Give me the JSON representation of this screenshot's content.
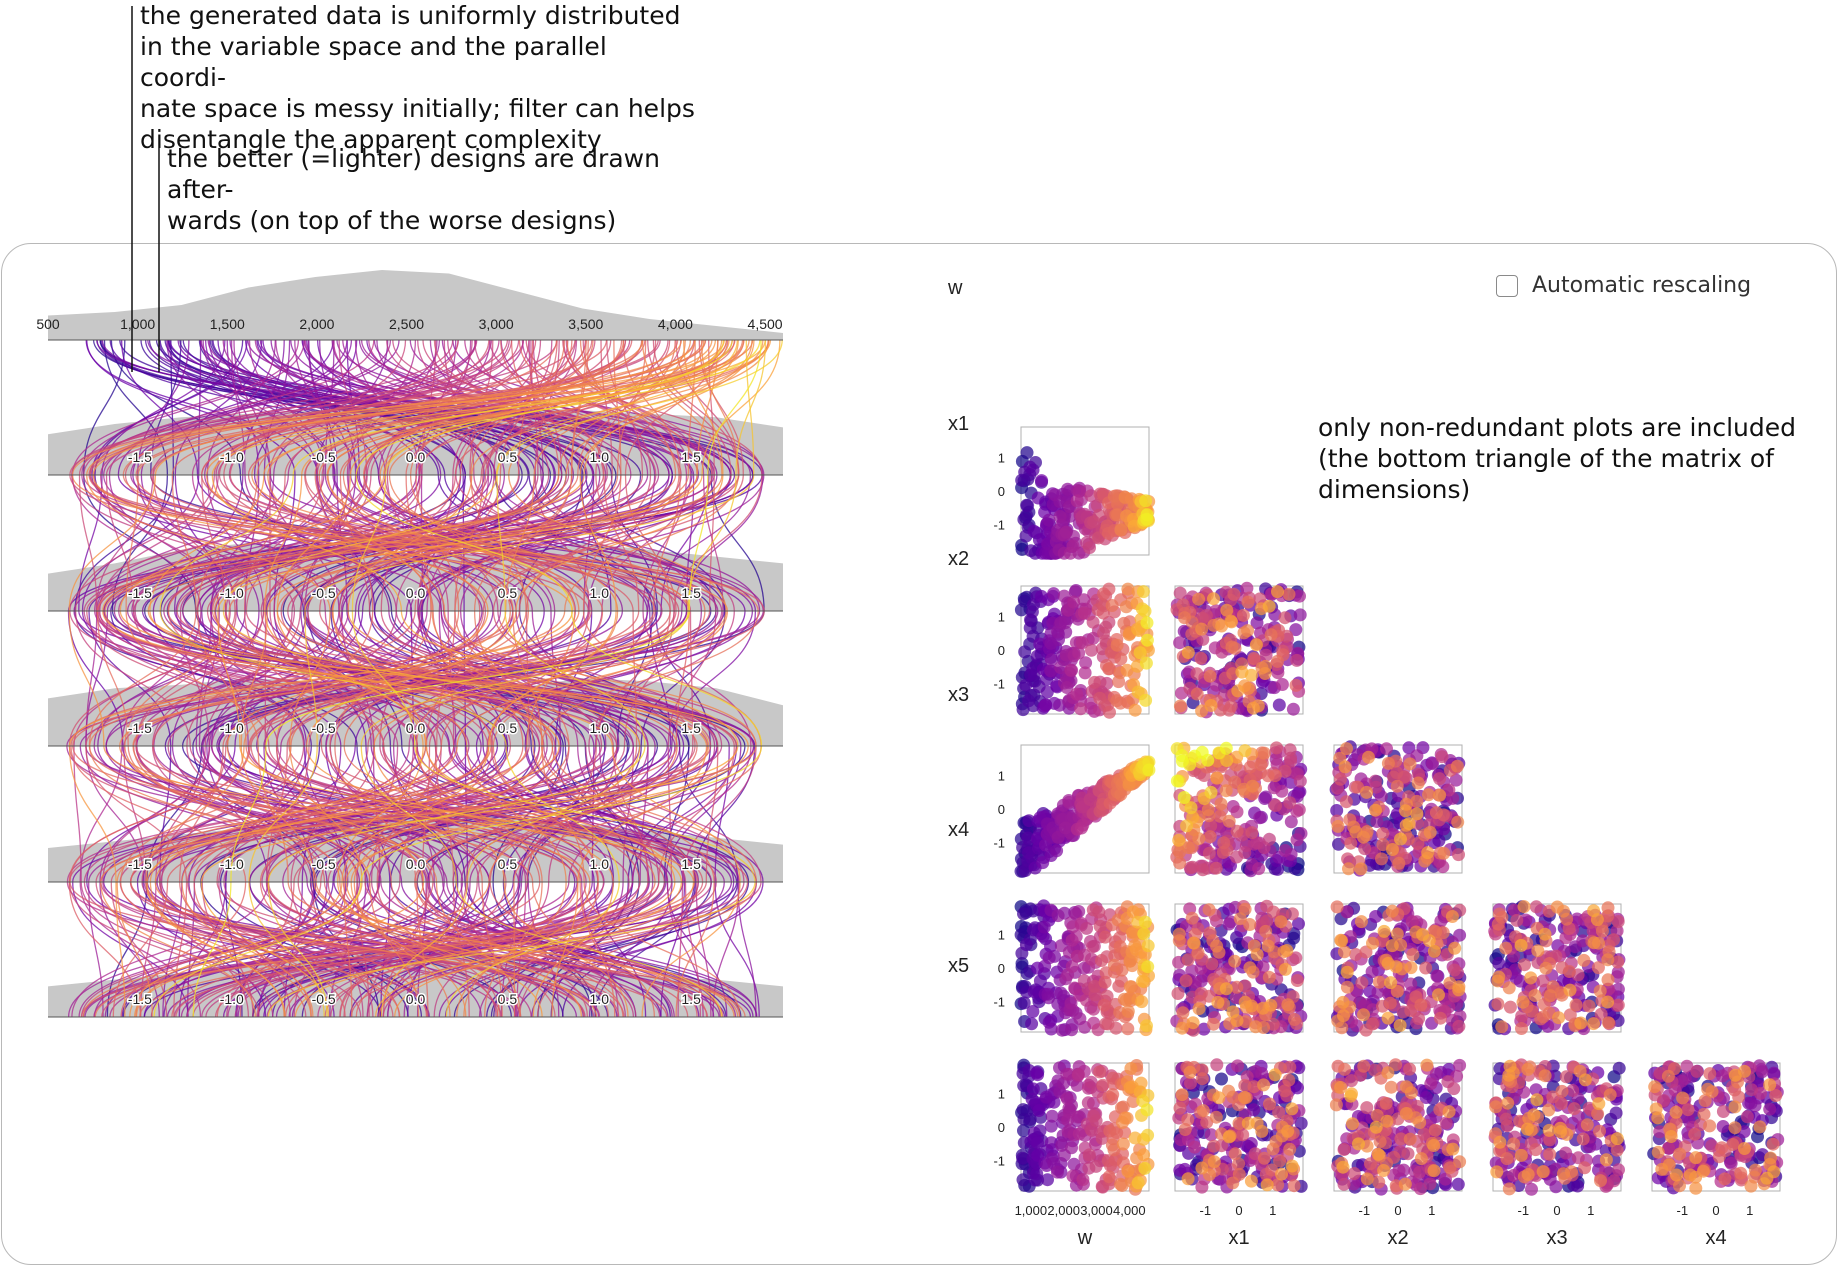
{
  "annotations": {
    "filter_note": [
      "the generated data is uniformly distributed",
      "in the variable space and the parallel coordi-",
      "nate space is messy initially; filter can helps",
      "disentangle the apparent complexity"
    ],
    "draw_order_note": [
      "the better (=lighter) designs are drawn after-",
      "wards (on top of the worse designs)"
    ],
    "matrix_note": [
      "only non-redundant plots are included",
      "(the bottom triangle of the matrix of",
      "dimensions)"
    ]
  },
  "controls": {
    "auto_rescale_label": "Automatic rescaling",
    "auto_rescale_checked": false
  },
  "colors": {
    "low": "#2d0a8f",
    "mid": "#b5389b",
    "high": "#f7c925",
    "density": "#c8c8c8",
    "frame": "#b0b0b0"
  },
  "chart_data": [
    {
      "type": "parallel_coordinates",
      "axes": [
        {
          "name": "w",
          "range": [
            500,
            4600
          ],
          "ticks": [
            "500",
            "1,000",
            "1,500",
            "2,000",
            "2,500",
            "3,000",
            "3,500",
            "4,000",
            "4,500"
          ],
          "tick_values": [
            500,
            1000,
            1500,
            2000,
            2500,
            3000,
            3500,
            4000,
            4500
          ]
        },
        {
          "name": "x1",
          "range": [
            -2,
            2
          ],
          "ticks": [
            "-1.5",
            "-1.0",
            "-0.5",
            "0.0",
            "0.5",
            "1.0",
            "1.5"
          ],
          "tick_values": [
            -1.5,
            -1.0,
            -0.5,
            0.0,
            0.5,
            1.0,
            1.5
          ]
        },
        {
          "name": "x2",
          "range": [
            -2,
            2
          ],
          "ticks": [
            "-1.5",
            "-1.0",
            "-0.5",
            "0.0",
            "0.5",
            "1.0",
            "1.5"
          ],
          "tick_values": [
            -1.5,
            -1.0,
            -0.5,
            0.0,
            0.5,
            1.0,
            1.5
          ]
        },
        {
          "name": "x3",
          "range": [
            -2,
            2
          ],
          "ticks": [
            "-1.5",
            "-1.0",
            "-0.5",
            "0.0",
            "0.5",
            "1.0",
            "1.5"
          ],
          "tick_values": [
            -1.5,
            -1.0,
            -0.5,
            0.0,
            0.5,
            1.0,
            1.5
          ]
        },
        {
          "name": "x4",
          "range": [
            -2,
            2
          ],
          "ticks": [
            "-1.5",
            "-1.0",
            "-0.5",
            "0.0",
            "0.5",
            "1.0",
            "1.5"
          ],
          "tick_values": [
            -1.5,
            -1.0,
            -0.5,
            0.0,
            0.5,
            1.0,
            1.5
          ]
        },
        {
          "name": "x5",
          "range": [
            -2,
            2
          ],
          "ticks": [
            "-1.5",
            "-1.0",
            "-0.5",
            "0.0",
            "0.5",
            "1.0",
            "1.5"
          ],
          "tick_values": [
            -1.5,
            -1.0,
            -0.5,
            0.0,
            0.5,
            1.0,
            1.5
          ]
        }
      ],
      "color_by": "design quality (lighter = better)",
      "density_profiles": {
        "w": [
          0.35,
          0.4,
          0.5,
          0.75,
          0.9,
          1.0,
          0.95,
          0.7,
          0.45,
          0.3,
          0.2,
          0.1
        ],
        "x1": [
          0.6,
          0.75,
          0.85,
          0.9,
          0.95,
          1.0,
          1.0,
          1.0,
          0.95,
          0.9,
          0.85,
          0.7
        ],
        "x2": [
          0.55,
          0.7,
          0.9,
          1.0,
          0.95,
          0.85,
          0.8,
          0.9,
          1.0,
          0.9,
          0.8,
          0.7
        ],
        "x3": [
          0.7,
          0.85,
          0.9,
          1.0,
          0.95,
          0.85,
          0.75,
          0.85,
          1.0,
          0.95,
          0.85,
          0.6
        ],
        "x4": [
          0.5,
          0.6,
          0.7,
          0.8,
          0.9,
          1.0,
          1.0,
          0.95,
          0.85,
          0.75,
          0.65,
          0.55
        ],
        "x5": [
          0.45,
          0.55,
          0.65,
          0.8,
          0.9,
          1.0,
          0.95,
          0.85,
          0.7,
          0.6,
          0.55,
          0.45
        ]
      }
    },
    {
      "type": "scatter_matrix",
      "variables": [
        "w",
        "x1",
        "x2",
        "x3",
        "x4"
      ],
      "y_variables": [
        "x1",
        "x2",
        "x3",
        "x4",
        "x5"
      ],
      "x_ticks": {
        "w": [
          "1,000",
          "2,000",
          "3,000",
          "4,000"
        ],
        "x1": [
          "-1",
          "0",
          "1"
        ],
        "x2": [
          "-1",
          "0",
          "1"
        ],
        "x3": [
          "-1",
          "0",
          "1"
        ],
        "x4": [
          "-1",
          "0",
          "1"
        ]
      },
      "y_ticks": [
        "1",
        "0",
        "-1"
      ],
      "ranges": {
        "w": [
          700,
          4600
        ],
        "x": [
          -1.9,
          1.9
        ]
      },
      "points_per_plot": 250,
      "color_by": "design quality (lighter = better)",
      "structure": "lower triangle only; strong dependence in (w,x1) and (w,x3), otherwise uniform"
    }
  ]
}
